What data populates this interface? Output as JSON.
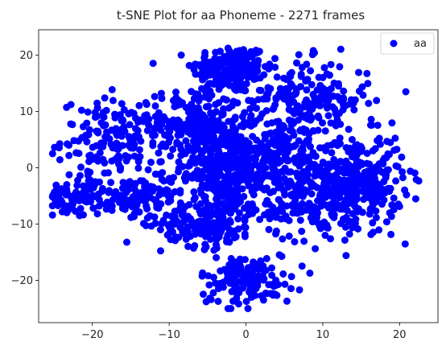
{
  "chart_data": {
    "type": "scatter",
    "title": "t-SNE Plot for aa Phoneme - 2271 frames",
    "xlabel": "",
    "ylabel": "",
    "xlim": [
      -27,
      25
    ],
    "ylim": [
      -27.5,
      24.5
    ],
    "xticks": [
      -20,
      -10,
      0,
      10,
      20
    ],
    "yticks": [
      -20,
      -10,
      0,
      10,
      20
    ],
    "grid": false,
    "legend": {
      "placement": "top-right"
    },
    "series": [
      {
        "name": "aa",
        "color": "#0000ff",
        "marker": "circle",
        "clusters": [
          {
            "cx": -2.0,
            "cy": 17.5,
            "sx": 2.5,
            "sy": 2.2,
            "n": 180
          },
          {
            "cx": -6.5,
            "cy": 8.0,
            "sx": 3.0,
            "sy": 3.0,
            "n": 200
          },
          {
            "cx": -17.0,
            "cy": 5.0,
            "sx": 3.5,
            "sy": 3.5,
            "n": 160
          },
          {
            "cx": -22.0,
            "cy": -5.0,
            "sx": 2.0,
            "sy": 1.8,
            "n": 80
          },
          {
            "cx": -14.0,
            "cy": -5.5,
            "sx": 3.0,
            "sy": 2.0,
            "n": 110
          },
          {
            "cx": -3.0,
            "cy": 0.0,
            "sx": 3.0,
            "sy": 4.0,
            "n": 340
          },
          {
            "cx": -5.0,
            "cy": -10.0,
            "sx": 3.0,
            "sy": 2.0,
            "n": 160
          },
          {
            "cx": 8.0,
            "cy": 12.0,
            "sx": 4.0,
            "sy": 3.5,
            "n": 210
          },
          {
            "cx": 14.5,
            "cy": -2.0,
            "sx": 3.0,
            "sy": 4.0,
            "n": 300
          },
          {
            "cx": 8.5,
            "cy": -5.0,
            "sx": 3.5,
            "sy": 4.0,
            "n": 230
          },
          {
            "cx": 0.0,
            "cy": -20.0,
            "sx": 3.0,
            "sy": 2.2,
            "n": 140
          },
          {
            "cx": 4.0,
            "cy": 3.0,
            "sx": 3.0,
            "sy": 3.0,
            "n": 151
          }
        ]
      }
    ],
    "point_count": 2271
  }
}
